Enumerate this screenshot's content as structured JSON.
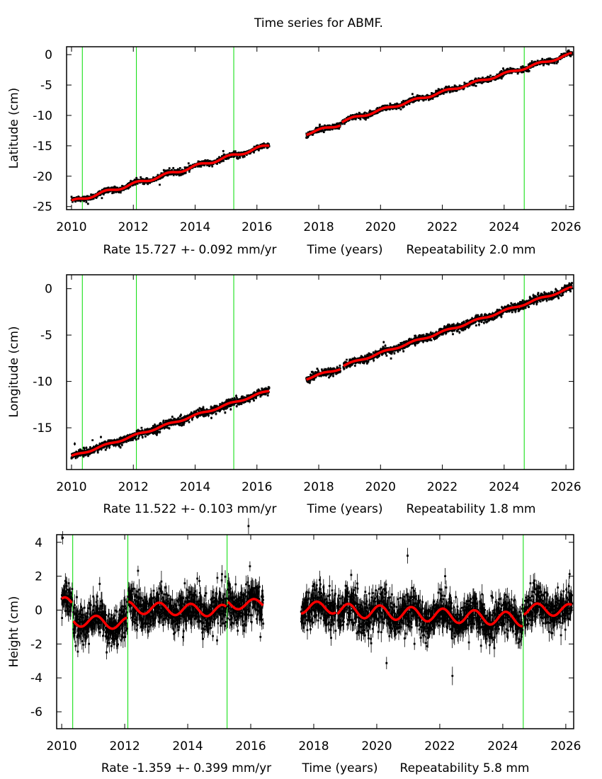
{
  "chart_data": {
    "type": "scatter",
    "title": "Time series for ABMF.",
    "x_axis_label": "Time (years)",
    "colors": {
      "data": "#000000",
      "model": "#ff0000",
      "offsets": "#00dd00"
    },
    "panels": [
      {
        "ylabel": "Latitude (cm)",
        "rate_label": "Rate 15.727 +- 0.092 mm/yr",
        "xlabel": "Time (years)",
        "repeatability_label": "Repeatability 2.0 mm",
        "xlim": [
          2009.84,
          2026.25
        ],
        "ylim": [
          -25.5,
          1.3
        ],
        "xticks": [
          "2010",
          "2012",
          "2014",
          "2016",
          "2018",
          "2020",
          "2022",
          "2024",
          "2026"
        ],
        "yticks": [
          "0",
          "-5",
          "-10",
          "-15",
          "-20",
          "-25"
        ],
        "offset_epochs": [
          2010.35,
          2012.1,
          2015.25,
          2024.65
        ],
        "noise_cm": 0.22,
        "error_cm": 0.15,
        "segments": [
          {
            "t0": 2010.0,
            "t1": 2016.4,
            "v0": -24.2,
            "v1": -14.9,
            "seasonal_amp": 0.25
          },
          {
            "t0": 2017.6,
            "t1": 2018.7,
            "v0": -13.0,
            "v1": -11.5,
            "seasonal_amp": 0.2
          },
          {
            "t0": 2018.75,
            "t1": 2026.2,
            "v0": -11.0,
            "v1": 0.1,
            "seasonal_amp": 0.2
          }
        ]
      },
      {
        "ylabel": "Longitude (cm)",
        "rate_label": "Rate 11.522 +- 0.103 mm/yr",
        "xlabel": "Time (years)",
        "repeatability_label": "Repeatability 1.8 mm",
        "xlim": [
          2009.84,
          2026.25
        ],
        "ylim": [
          -19.5,
          1.5
        ],
        "xticks": [
          "2010",
          "2012",
          "2014",
          "2016",
          "2018",
          "2020",
          "2022",
          "2024",
          "2026"
        ],
        "yticks": [
          "0",
          "-5",
          "-10",
          "-15"
        ],
        "offset_epochs": [
          2010.35,
          2012.1,
          2015.25,
          2024.65
        ],
        "noise_cm": 0.2,
        "error_cm": 0.15,
        "segments": [
          {
            "t0": 2010.0,
            "t1": 2016.4,
            "v0": -18.1,
            "v1": -11.0,
            "seasonal_amp": 0.1
          },
          {
            "t0": 2017.6,
            "t1": 2018.7,
            "v0": -9.7,
            "v1": -8.6,
            "seasonal_amp": 0.1
          },
          {
            "t0": 2018.8,
            "t1": 2026.2,
            "v0": -8.3,
            "v1": 0.1,
            "seasonal_amp": 0.1
          }
        ]
      },
      {
        "ylabel": "Height (cm)",
        "rate_label": "Rate -1.359 +- 0.399 mm/yr",
        "xlabel": "Time (years)",
        "repeatability_label": "Repeatability 5.8 mm",
        "xlim": [
          2009.84,
          2026.25
        ],
        "ylim": [
          -7.0,
          4.45
        ],
        "xticks": [
          "2010",
          "2012",
          "2014",
          "2016",
          "2018",
          "2020",
          "2022",
          "2024",
          "2026"
        ],
        "yticks": [
          "4",
          "2",
          "0",
          "-2",
          "-4",
          "-6"
        ],
        "offset_epochs": [
          2010.35,
          2012.1,
          2015.25,
          2024.65
        ],
        "noise_cm": 0.55,
        "error_cm": 0.45,
        "segments": [
          {
            "t0": 2010.0,
            "t1": 2010.33,
            "v0": 0.35,
            "v1": 0.35,
            "seasonal_amp": 0.4
          },
          {
            "t0": 2010.37,
            "t1": 2012.08,
            "v0": -0.6,
            "v1": -0.8,
            "seasonal_amp": 0.35
          },
          {
            "t0": 2012.12,
            "t1": 2015.23,
            "v0": 0.15,
            "v1": -0.05,
            "seasonal_amp": 0.35
          },
          {
            "t0": 2015.27,
            "t1": 2016.4,
            "v0": 0.35,
            "v1": 0.35,
            "seasonal_amp": 0.3
          },
          {
            "t0": 2017.6,
            "t1": 2018.7,
            "v0": 0.15,
            "v1": 0.15,
            "seasonal_amp": 0.35
          },
          {
            "t0": 2018.75,
            "t1": 2024.63,
            "v0": 0.0,
            "v1": -0.55,
            "seasonal_amp": 0.4
          },
          {
            "t0": 2024.67,
            "t1": 2026.2,
            "v0": 0.05,
            "v1": 0.0,
            "seasonal_amp": 0.35
          }
        ]
      }
    ]
  }
}
